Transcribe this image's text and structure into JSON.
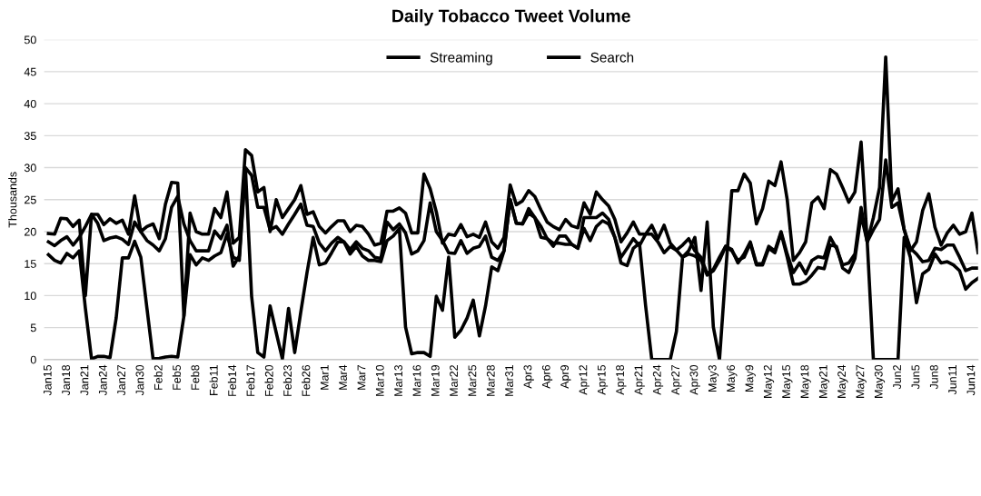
{
  "chart_data": {
    "type": "line",
    "title": "Daily Tobacco Tweet Volume",
    "ylabel": "Thousands",
    "categories": [
      "Jan15",
      null,
      null,
      "Jan18",
      null,
      null,
      "Jan21",
      null,
      null,
      "Jan24",
      null,
      null,
      "Jan27",
      null,
      null,
      "Jan30",
      null,
      null,
      "Feb2",
      null,
      null,
      "Feb5",
      null,
      null,
      "Feb8",
      null,
      null,
      "Feb11",
      null,
      null,
      "Feb14",
      null,
      null,
      "Feb17",
      null,
      null,
      "Feb20",
      null,
      null,
      "Feb23",
      null,
      null,
      "Feb26",
      null,
      null,
      "Mar1",
      null,
      null,
      "Mar4",
      null,
      null,
      "Mar7",
      null,
      null,
      "Mar10",
      null,
      null,
      "Mar13",
      null,
      null,
      "Mar16",
      null,
      null,
      "Mar19",
      null,
      null,
      "Mar22",
      null,
      null,
      "Mar25",
      null,
      null,
      "Mar28",
      null,
      null,
      "Mar31",
      null,
      null,
      "Apr3",
      null,
      null,
      "Apr6",
      null,
      null,
      "Apr9",
      null,
      null,
      "Apr12",
      null,
      null,
      "Apr15",
      null,
      null,
      "Apr18",
      null,
      null,
      "Apr21",
      null,
      null,
      "Apr24",
      null,
      null,
      "Apr27",
      null,
      null,
      "Apr30",
      null,
      null,
      "May3",
      null,
      null,
      "May6",
      null,
      null,
      "May9",
      null,
      null,
      "May12",
      null,
      null,
      "May15",
      null,
      null,
      "May18",
      null,
      null,
      "May21",
      null,
      null,
      "May24",
      null,
      null,
      "May27",
      null,
      null,
      "May30",
      null,
      null,
      "Jun2",
      null,
      null,
      "Jun5",
      null,
      null,
      "Jun8",
      null,
      null,
      "Jun11",
      null,
      null,
      "Jun14",
      null
    ],
    "series": [
      {
        "color": "#000000",
        "values": [
          19.7,
          19.6,
          22.1,
          22,
          20.8,
          21.8,
          10,
          22.7,
          22.7,
          21.1,
          22,
          21.3,
          21.8,
          19.6,
          25.6,
          20,
          20.8,
          21.2,
          18.9,
          24.3,
          27.7,
          27.6,
          6.8,
          22.9,
          20,
          19.6,
          19.6,
          23.6,
          22.2,
          26.2,
          18.2,
          19.1,
          32.8,
          31.9,
          26.2,
          26.9,
          20,
          25,
          22.2,
          23.6,
          25,
          27.2,
          22.7,
          23.1,
          20.8,
          19.8,
          20.8,
          21.7,
          21.7,
          20,
          21,
          20.8,
          19.6,
          17.9,
          18.2,
          23.2,
          23.2,
          23.7,
          22.9,
          19.8,
          19.8,
          29,
          26.7,
          23.1,
          18.2,
          19.6,
          19.4,
          21.1,
          19.2,
          19.6,
          19.1,
          21.5,
          18.4,
          17.4,
          19.1,
          27.3,
          24.2,
          24.8,
          26.4,
          25.5,
          23.4,
          21.5,
          20.8,
          20.3,
          21.9,
          20.9,
          20.6,
          24.5,
          22.7,
          26.2,
          25,
          24,
          21.9,
          18.4,
          19.8,
          21.5,
          19.6,
          19.6,
          21,
          18.9,
          21,
          18.2,
          17.1,
          16,
          17,
          19.1,
          10.8,
          21.5,
          5.1,
          0,
          13.6,
          26.4,
          26.4,
          29,
          27.6,
          21.2,
          23.6,
          27.9,
          27.2,
          30.9,
          25,
          15.5,
          16.7,
          18.4,
          24.5,
          25.4,
          23.6,
          29.7,
          29,
          26.9,
          24.6,
          26.2,
          34,
          18.4,
          22.2,
          26.9,
          47.3,
          24.8,
          26.7,
          20.3,
          17,
          18.4,
          23.3,
          25.9,
          20.7,
          17.9,
          19.8,
          21,
          19.6,
          20,
          22.9,
          16.7
        ]
      },
      {
        "name": "Streaming",
        "color": "#000000",
        "values": [
          18.4,
          17.8,
          18.6,
          19.2,
          17.9,
          19.1,
          20.8,
          22.7,
          21.3,
          18.6,
          19,
          19.2,
          18.8,
          18,
          21.5,
          20,
          18.6,
          17.9,
          17,
          18.9,
          23.8,
          25.5,
          21.2,
          18.6,
          17,
          17,
          17,
          20.1,
          18.9,
          21,
          14.6,
          16.2,
          30,
          28.8,
          23.8,
          23.8,
          20.3,
          20.8,
          19.6,
          21.2,
          22.7,
          24.3,
          21,
          20.8,
          18.2,
          17,
          18.2,
          19.1,
          18.4,
          17.2,
          18.4,
          17.4,
          17,
          16,
          15.8,
          21.5,
          20.3,
          21.2,
          19.8,
          16.5,
          17,
          18.6,
          24.5,
          20,
          18.6,
          16.7,
          16.6,
          18.6,
          16.6,
          17.4,
          17.7,
          19.3,
          16,
          15.5,
          17,
          25,
          21.3,
          21.2,
          23.6,
          22.2,
          20.8,
          18.9,
          17.7,
          19.3,
          19.3,
          18,
          17.4,
          22.2,
          22.2,
          22.2,
          22.9,
          21.9,
          19.1,
          16,
          17.4,
          18.9,
          17.8,
          19.6,
          19.6,
          18.4,
          16.7,
          17.7,
          17.1,
          17.9,
          18.9,
          17,
          16,
          13.4,
          14.1,
          16,
          17.7,
          17.2,
          15.1,
          16.5,
          18.4,
          15,
          15,
          17.7,
          17,
          20,
          16.5,
          13.6,
          15.1,
          13.4,
          15.5,
          16.1,
          15.9,
          19.1,
          17.4,
          14.8,
          15.1,
          16.5,
          23.8,
          18.4,
          20.3,
          21.9,
          31.2,
          23.8,
          24.5,
          20.3,
          17.4,
          16.5,
          15.3,
          15.5,
          17.4,
          17.2,
          17.9,
          17.9,
          16,
          13.9,
          14.3,
          14.3
        ]
      },
      {
        "name": "Search",
        "color": "#000000",
        "values": [
          16.4,
          15.5,
          15.1,
          16.6,
          15.9,
          17,
          8,
          0.1,
          0.5,
          0.5,
          0.3,
          6.5,
          15.9,
          15.9,
          18.5,
          16,
          8,
          0.1,
          0.2,
          0.4,
          0.5,
          0.4,
          6.8,
          16.4,
          14.8,
          15.9,
          15.5,
          16.2,
          16.7,
          19.6,
          16,
          15.5,
          29.8,
          9.9,
          1.1,
          0.4,
          8.4,
          4.2,
          0.1,
          8,
          1.1,
          7.5,
          13.6,
          19.1,
          14.8,
          15.1,
          16.7,
          18.4,
          18.4,
          16.5,
          17.7,
          16.2,
          15.5,
          15.5,
          15.3,
          18.6,
          19.3,
          20.5,
          5.1,
          0.9,
          1.1,
          1.1,
          0.5,
          9.9,
          7.7,
          16,
          3.5,
          4.6,
          6.5,
          9.3,
          3.7,
          8.4,
          14.5,
          13.9,
          17,
          25,
          21.3,
          21.2,
          22.9,
          22.2,
          19.1,
          18.9,
          18.2,
          18.2,
          18,
          18,
          17.4,
          20.5,
          18.6,
          20.8,
          21.7,
          21.2,
          19.1,
          15.1,
          14.7,
          17.4,
          18.2,
          8.4,
          0,
          0,
          0,
          0,
          4.4,
          16,
          16.5,
          16.2,
          15.5,
          13.2,
          13.9,
          15.5,
          17.7,
          17,
          15.5,
          16,
          18.2,
          14.8,
          14.8,
          17.4,
          16.7,
          19.8,
          16,
          11.8,
          11.8,
          12.2,
          13.2,
          14.4,
          14.2,
          17.9,
          17.7,
          14.3,
          13.6,
          15.8,
          22.6,
          18.4,
          0,
          0,
          0,
          0,
          0,
          19.1,
          16,
          8.9,
          13.4,
          14.1,
          16.5,
          15.1,
          15.3,
          14.8,
          13.9,
          11,
          12,
          12.7
        ]
      }
    ],
    "ylim": [
      0,
      50
    ],
    "yticks": [
      0,
      5,
      10,
      15,
      20,
      25,
      30,
      35,
      40,
      45,
      50
    ],
    "grid": "y",
    "legend": "top",
    "marker": "none",
    "line_style": "solid"
  }
}
